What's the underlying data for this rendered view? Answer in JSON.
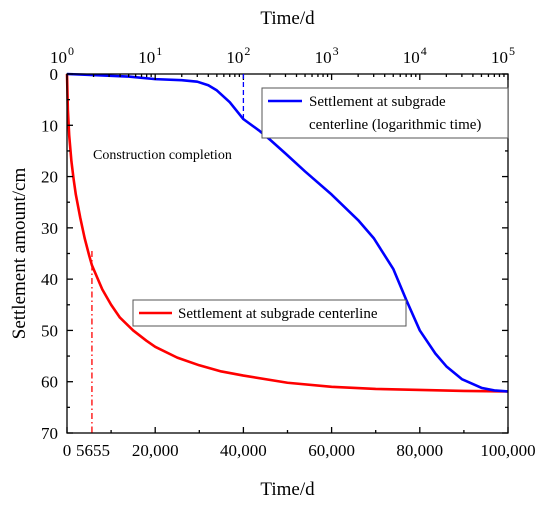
{
  "chart_data": {
    "type": "line",
    "title": "",
    "xlabel_bottom": "Time/d",
    "xlabel_top": "Time/d",
    "ylabel": "Settlement amount/cm",
    "x_bottom": {
      "scale": "linear",
      "range": [
        0,
        100000
      ],
      "ticks": [
        0,
        20000,
        40000,
        60000,
        80000,
        100000
      ],
      "tick_labels": [
        "0",
        "20,000",
        "40,000",
        "60,000",
        "80,000",
        "100,000"
      ]
    },
    "x_top": {
      "scale": "log",
      "range": [
        1,
        100000
      ],
      "ticks": [
        1,
        10,
        100,
        1000,
        10000,
        100000
      ],
      "tick_bases": [
        "10",
        "10",
        "10",
        "10",
        "10",
        "10"
      ],
      "tick_exponents": [
        "0",
        "1",
        "2",
        "3",
        "4",
        "5"
      ]
    },
    "y": {
      "range": [
        0,
        70
      ],
      "inverted": true,
      "ticks": [
        0,
        10,
        20,
        30,
        40,
        50,
        60,
        70
      ],
      "tick_labels": [
        "0",
        "10",
        "20",
        "30",
        "40",
        "50",
        "60",
        "70"
      ]
    },
    "series": [
      {
        "name": "Settlement at subgrade centerline",
        "axis": "bottom-linear",
        "color": "#ff0000",
        "points": [
          [
            0,
            0
          ],
          [
            200,
            7
          ],
          [
            500,
            12
          ],
          [
            1000,
            17
          ],
          [
            1500,
            20.5
          ],
          [
            2000,
            23.5
          ],
          [
            3000,
            28
          ],
          [
            4000,
            32
          ],
          [
            5000,
            35.3
          ],
          [
            5655,
            37.3
          ],
          [
            7000,
            40
          ],
          [
            8000,
            42
          ],
          [
            10000,
            45
          ],
          [
            12000,
            47.5
          ],
          [
            15000,
            50
          ],
          [
            18000,
            52
          ],
          [
            20000,
            53.2
          ],
          [
            25000,
            55.3
          ],
          [
            30000,
            56.8
          ],
          [
            35000,
            58
          ],
          [
            40000,
            58.8
          ],
          [
            50000,
            60.2
          ],
          [
            60000,
            61
          ],
          [
            70000,
            61.4
          ],
          [
            80000,
            61.6
          ],
          [
            90000,
            61.8
          ],
          [
            100000,
            61.9
          ]
        ]
      },
      {
        "name": "Settlement at subgrade centerline (logarithmic time)",
        "axis": "top-log",
        "color": "#0000ff",
        "points": [
          [
            1,
            0
          ],
          [
            2,
            0.2
          ],
          [
            5,
            0.5
          ],
          [
            10,
            1
          ],
          [
            20,
            1.2
          ],
          [
            30,
            1.5
          ],
          [
            40,
            2.2
          ],
          [
            50,
            3.2
          ],
          [
            70,
            5.5
          ],
          [
            100,
            8.8
          ],
          [
            150,
            11
          ],
          [
            200,
            12.8
          ],
          [
            300,
            15.5
          ],
          [
            500,
            19
          ],
          [
            1000,
            23.5
          ],
          [
            2000,
            28.5
          ],
          [
            3000,
            32
          ],
          [
            5000,
            38
          ],
          [
            7000,
            44
          ],
          [
            10000,
            50
          ],
          [
            15000,
            54.5
          ],
          [
            20000,
            57
          ],
          [
            30000,
            59.5
          ],
          [
            50000,
            61.2
          ],
          [
            70000,
            61.7
          ],
          [
            100000,
            61.9
          ]
        ]
      }
    ],
    "legend": [
      {
        "label_line1": "Settlement at subgrade",
        "label_line2": "centerline (logarithmic time)",
        "color": "#0000ff",
        "position": "upper-right"
      },
      {
        "label_line1": "Settlement at subgrade centerline",
        "color": "#ff0000",
        "position": "lower-left"
      }
    ],
    "annotations": {
      "construction_completion": {
        "text": "Construction completion",
        "x_top": 100,
        "y": 8.8
      },
      "marker_5655": {
        "text": "5655",
        "x_bottom": 5655,
        "y": 37.3
      }
    }
  }
}
